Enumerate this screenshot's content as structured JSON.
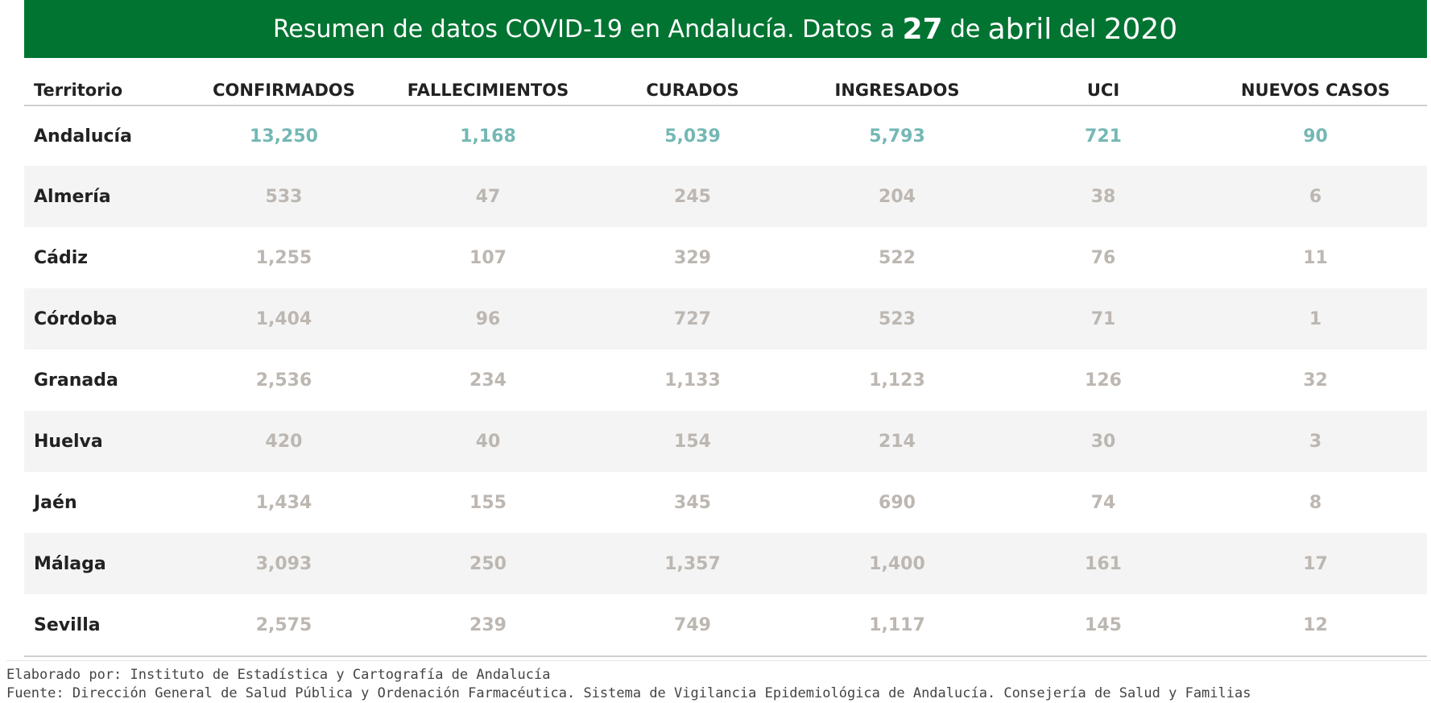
{
  "header": {
    "title_part1": "Resumen de datos COVID-19 en Andalucía. Datos a",
    "day": "27",
    "de": "de",
    "month": "abril",
    "del": "del",
    "year": "2020"
  },
  "chart_data": {
    "type": "table",
    "columns": [
      "Territorio",
      "CONFIRMADOS",
      "FALLECIMIENTOS",
      "CURADOS",
      "INGRESADOS",
      "UCI",
      "NUEVOS CASOS"
    ],
    "rows": [
      [
        "Andalucía",
        "13,250",
        "1,168",
        "5,039",
        "5,793",
        "721",
        "90"
      ],
      [
        "Almería",
        "533",
        "47",
        "245",
        "204",
        "38",
        "6"
      ],
      [
        "Cádiz",
        "1,255",
        "107",
        "329",
        "522",
        "76",
        "11"
      ],
      [
        "Córdoba",
        "1,404",
        "96",
        "727",
        "523",
        "71",
        "1"
      ],
      [
        "Granada",
        "2,536",
        "234",
        "1,133",
        "1,123",
        "126",
        "32"
      ],
      [
        "Huelva",
        "420",
        "40",
        "154",
        "214",
        "30",
        "3"
      ],
      [
        "Jaén",
        "1,434",
        "155",
        "345",
        "690",
        "74",
        "8"
      ],
      [
        "Málaga",
        "3,093",
        "250",
        "1,357",
        "1,400",
        "161",
        "17"
      ],
      [
        "Sevilla",
        "2,575",
        "239",
        "749",
        "1,117",
        "145",
        "12"
      ]
    ],
    "colors": {
      "header_bg": "#027432",
      "total_values": "#74b8b4",
      "province_values": "#bdb7b2",
      "stripe": "#f4f4f4"
    }
  },
  "footer": {
    "line1": "Elaborado por: Instituto de Estadística y Cartografía de Andalucía",
    "line2": "Fuente: Dirección General de Salud Pública y Ordenación Farmacéutica. Sistema de Vigilancia Epidemiológica de Andalucía. Consejería de Salud y Familias"
  }
}
